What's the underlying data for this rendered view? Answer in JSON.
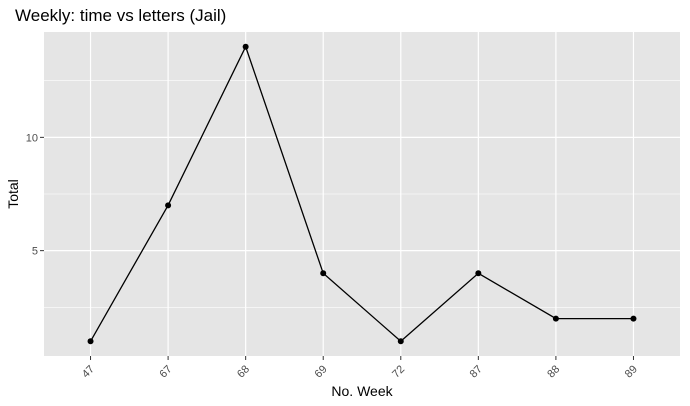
{
  "chart_data": {
    "type": "line",
    "title": "Weekly: time vs letters (Jail)",
    "xlabel": "No. Week",
    "ylabel": "Total",
    "categories": [
      "47",
      "67",
      "68",
      "69",
      "72",
      "87",
      "88",
      "89"
    ],
    "values": [
      1,
      7,
      14,
      4,
      1,
      4,
      2,
      2
    ],
    "ylim": [
      0.35,
      14.65
    ],
    "yticks": [
      5,
      10
    ],
    "ytick_labels": [
      "5",
      "10"
    ],
    "x_tick_rotation": 45,
    "grid": true,
    "legend": "none",
    "colors": {
      "panel": "#e5e5e5",
      "grid_major": "#ffffff",
      "line": "#000000",
      "point": "#000000",
      "tick_text": "#4d4d4d"
    }
  }
}
